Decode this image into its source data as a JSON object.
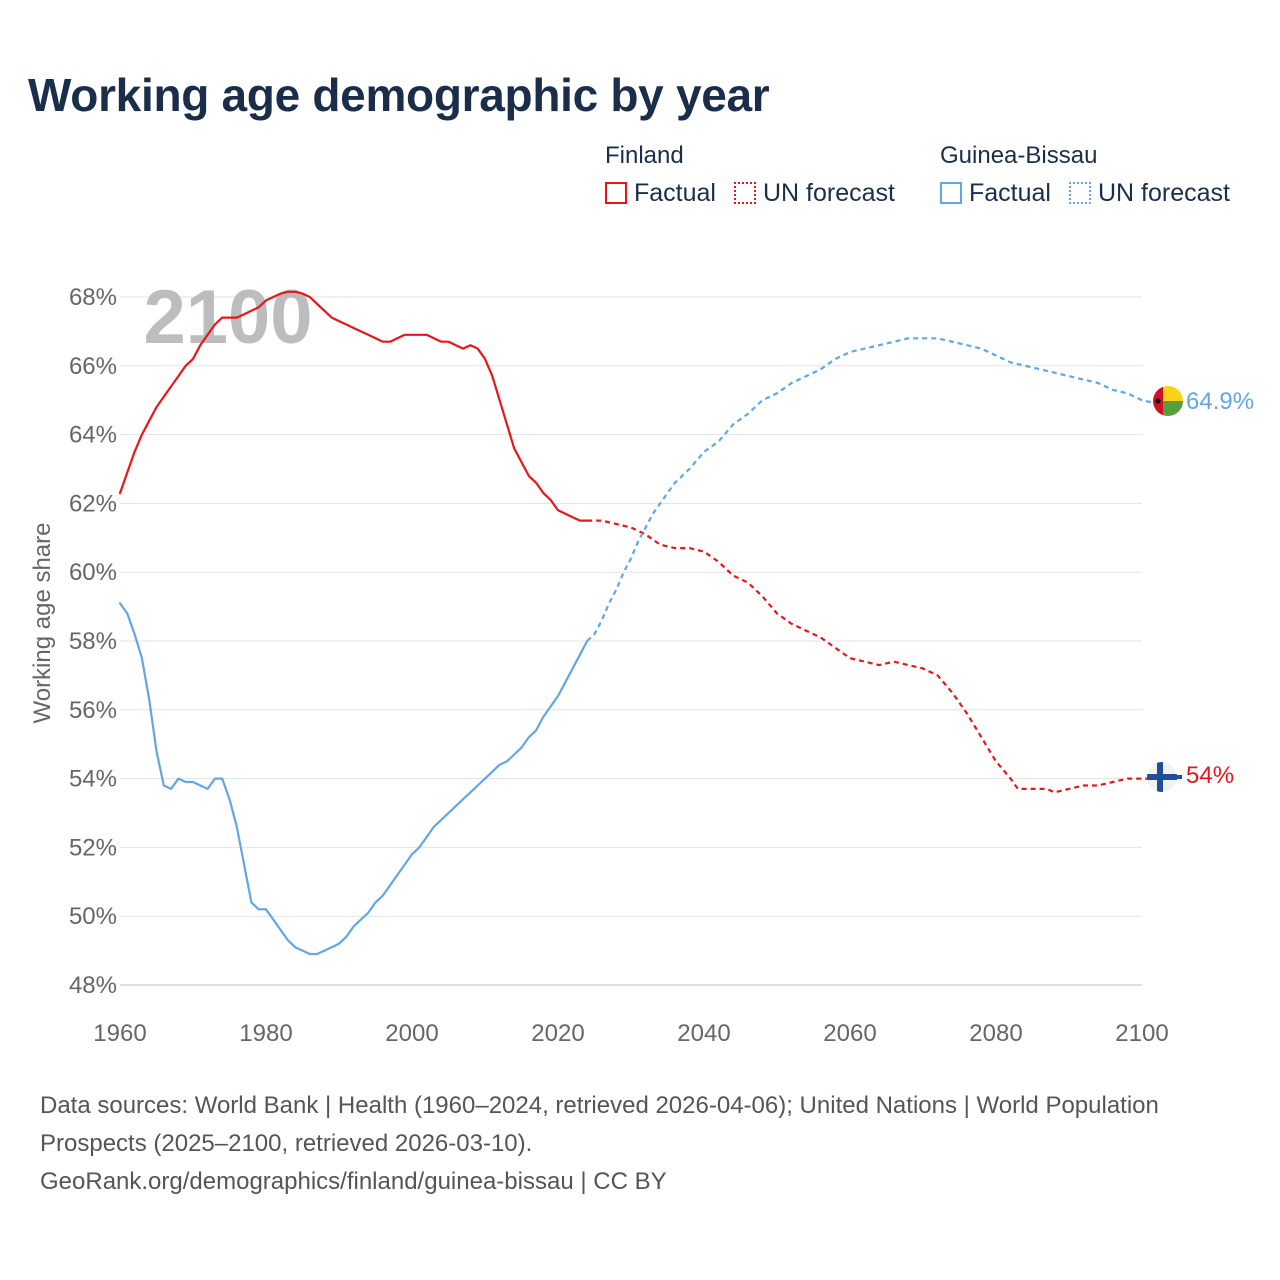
{
  "title": "Working age demographic by year",
  "legend": {
    "groups": [
      {
        "name": "Finland",
        "color": "#e8161b",
        "items": [
          {
            "label": "Factual",
            "style": "solid"
          },
          {
            "label": "UN forecast",
            "style": "dotted"
          }
        ]
      },
      {
        "name": "Guinea-Bissau",
        "color": "#62a6e3",
        "items": [
          {
            "label": "Factual",
            "style": "solid"
          },
          {
            "label": "UN forecast",
            "style": "dotted"
          }
        ]
      }
    ]
  },
  "year_watermark": "2100",
  "footer": {
    "sources": "Data sources: World Bank | Health (1960–2024, retrieved 2026-04-06); United Nations | World Population Prospects (2025–2100, retrieved 2026-03-10).",
    "credit": "GeoRank.org/demographics/finland/guinea-bissau | CC BY"
  },
  "chart_data": {
    "type": "line",
    "title": "Working age demographic by year",
    "xlabel": "",
    "ylabel": "Working age share",
    "xlim": [
      1960,
      2100
    ],
    "ylim": [
      48,
      68
    ],
    "x_ticks": [
      1960,
      1980,
      2000,
      2020,
      2040,
      2060,
      2080,
      2100
    ],
    "x_tick_labels": [
      "1960",
      "1980",
      "2000",
      "2020",
      "2040",
      "2060",
      "2080",
      "2100"
    ],
    "y_ticks": [
      48,
      50,
      52,
      54,
      56,
      58,
      60,
      62,
      64,
      66,
      68
    ],
    "y_tick_labels": [
      "48%",
      "50%",
      "52%",
      "54%",
      "56%",
      "58%",
      "60%",
      "62%",
      "64%",
      "66%",
      "68%"
    ],
    "grid": true,
    "forecast_start_year": 2024,
    "series": [
      {
        "name": "Finland",
        "color": "#e8161b",
        "end_label": "54%",
        "flag": "finland-flag",
        "points": [
          [
            1960,
            62.3
          ],
          [
            1961,
            62.9
          ],
          [
            1962,
            63.5
          ],
          [
            1963,
            64.0
          ],
          [
            1964,
            64.4
          ],
          [
            1965,
            64.8
          ],
          [
            1966,
            65.1
          ],
          [
            1967,
            65.4
          ],
          [
            1968,
            65.7
          ],
          [
            1969,
            66.0
          ],
          [
            1970,
            66.2
          ],
          [
            1971,
            66.6
          ],
          [
            1972,
            66.9
          ],
          [
            1973,
            67.2
          ],
          [
            1974,
            67.4
          ],
          [
            1975,
            67.4
          ],
          [
            1976,
            67.4
          ],
          [
            1977,
            67.5
          ],
          [
            1978,
            67.6
          ],
          [
            1979,
            67.7
          ],
          [
            1980,
            67.9
          ],
          [
            1981,
            68.0
          ],
          [
            1982,
            68.1
          ],
          [
            1983,
            68.15
          ],
          [
            1984,
            68.15
          ],
          [
            1985,
            68.1
          ],
          [
            1986,
            68.0
          ],
          [
            1987,
            67.8
          ],
          [
            1988,
            67.6
          ],
          [
            1989,
            67.4
          ],
          [
            1990,
            67.3
          ],
          [
            1991,
            67.2
          ],
          [
            1992,
            67.1
          ],
          [
            1993,
            67.0
          ],
          [
            1994,
            66.9
          ],
          [
            1995,
            66.8
          ],
          [
            1996,
            66.7
          ],
          [
            1997,
            66.7
          ],
          [
            1998,
            66.8
          ],
          [
            1999,
            66.9
          ],
          [
            2000,
            66.9
          ],
          [
            2001,
            66.9
          ],
          [
            2002,
            66.9
          ],
          [
            2003,
            66.8
          ],
          [
            2004,
            66.7
          ],
          [
            2005,
            66.7
          ],
          [
            2006,
            66.6
          ],
          [
            2007,
            66.5
          ],
          [
            2008,
            66.6
          ],
          [
            2009,
            66.5
          ],
          [
            2010,
            66.2
          ],
          [
            2011,
            65.7
          ],
          [
            2012,
            65.0
          ],
          [
            2013,
            64.3
          ],
          [
            2014,
            63.6
          ],
          [
            2015,
            63.2
          ],
          [
            2016,
            62.8
          ],
          [
            2017,
            62.6
          ],
          [
            2018,
            62.3
          ],
          [
            2019,
            62.1
          ],
          [
            2020,
            61.8
          ],
          [
            2021,
            61.7
          ],
          [
            2022,
            61.6
          ],
          [
            2023,
            61.5
          ],
          [
            2024,
            61.5
          ],
          [
            2026,
            61.5
          ],
          [
            2028,
            61.4
          ],
          [
            2030,
            61.3
          ],
          [
            2032,
            61.1
          ],
          [
            2034,
            60.8
          ],
          [
            2036,
            60.7
          ],
          [
            2038,
            60.7
          ],
          [
            2040,
            60.6
          ],
          [
            2042,
            60.3
          ],
          [
            2044,
            59.9
          ],
          [
            2046,
            59.7
          ],
          [
            2048,
            59.3
          ],
          [
            2050,
            58.8
          ],
          [
            2052,
            58.5
          ],
          [
            2054,
            58.3
          ],
          [
            2056,
            58.1
          ],
          [
            2058,
            57.8
          ],
          [
            2060,
            57.5
          ],
          [
            2062,
            57.4
          ],
          [
            2064,
            57.3
          ],
          [
            2066,
            57.4
          ],
          [
            2068,
            57.3
          ],
          [
            2070,
            57.2
          ],
          [
            2072,
            57.0
          ],
          [
            2074,
            56.5
          ],
          [
            2076,
            55.9
          ],
          [
            2078,
            55.2
          ],
          [
            2080,
            54.5
          ],
          [
            2082,
            54.0
          ],
          [
            2083,
            53.7
          ],
          [
            2085,
            53.7
          ],
          [
            2087,
            53.7
          ],
          [
            2088,
            53.6
          ],
          [
            2090,
            53.7
          ],
          [
            2092,
            53.8
          ],
          [
            2094,
            53.8
          ],
          [
            2096,
            53.9
          ],
          [
            2098,
            54.0
          ],
          [
            2100,
            54.0
          ],
          [
            2102,
            54.0
          ],
          [
            2104,
            54.0
          ],
          [
            2105,
            54.0
          ]
        ]
      },
      {
        "name": "Guinea-Bissau",
        "color": "#62a6e3",
        "end_label": "64.9%",
        "flag": "guinea-bissau-flag",
        "points": [
          [
            1960,
            59.1
          ],
          [
            1961,
            58.8
          ],
          [
            1962,
            58.2
          ],
          [
            1963,
            57.5
          ],
          [
            1964,
            56.3
          ],
          [
            1965,
            54.8
          ],
          [
            1966,
            53.8
          ],
          [
            1967,
            53.7
          ],
          [
            1968,
            54.0
          ],
          [
            1969,
            53.9
          ],
          [
            1970,
            53.9
          ],
          [
            1971,
            53.8
          ],
          [
            1972,
            53.7
          ],
          [
            1973,
            54.0
          ],
          [
            1974,
            54.0
          ],
          [
            1975,
            53.4
          ],
          [
            1976,
            52.6
          ],
          [
            1977,
            51.5
          ],
          [
            1978,
            50.4
          ],
          [
            1979,
            50.2
          ],
          [
            1980,
            50.2
          ],
          [
            1981,
            49.9
          ],
          [
            1982,
            49.6
          ],
          [
            1983,
            49.3
          ],
          [
            1984,
            49.1
          ],
          [
            1985,
            49.0
          ],
          [
            1986,
            48.9
          ],
          [
            1987,
            48.9
          ],
          [
            1988,
            49.0
          ],
          [
            1989,
            49.1
          ],
          [
            1990,
            49.2
          ],
          [
            1991,
            49.4
          ],
          [
            1992,
            49.7
          ],
          [
            1993,
            49.9
          ],
          [
            1994,
            50.1
          ],
          [
            1995,
            50.4
          ],
          [
            1996,
            50.6
          ],
          [
            1997,
            50.9
          ],
          [
            1998,
            51.2
          ],
          [
            1999,
            51.5
          ],
          [
            2000,
            51.8
          ],
          [
            2001,
            52.0
          ],
          [
            2002,
            52.3
          ],
          [
            2003,
            52.6
          ],
          [
            2004,
            52.8
          ],
          [
            2005,
            53.0
          ],
          [
            2006,
            53.2
          ],
          [
            2007,
            53.4
          ],
          [
            2008,
            53.6
          ],
          [
            2009,
            53.8
          ],
          [
            2010,
            54.0
          ],
          [
            2011,
            54.2
          ],
          [
            2012,
            54.4
          ],
          [
            2013,
            54.5
          ],
          [
            2014,
            54.7
          ],
          [
            2015,
            54.9
          ],
          [
            2016,
            55.2
          ],
          [
            2017,
            55.4
          ],
          [
            2018,
            55.8
          ],
          [
            2019,
            56.1
          ],
          [
            2020,
            56.4
          ],
          [
            2021,
            56.8
          ],
          [
            2022,
            57.2
          ],
          [
            2023,
            57.6
          ],
          [
            2024,
            58.0
          ],
          [
            2025,
            58.2
          ],
          [
            2026,
            58.6
          ],
          [
            2027,
            59.1
          ],
          [
            2028,
            59.5
          ],
          [
            2029,
            60.0
          ],
          [
            2030,
            60.4
          ],
          [
            2031,
            60.9
          ],
          [
            2032,
            61.3
          ],
          [
            2033,
            61.7
          ],
          [
            2034,
            62.0
          ],
          [
            2035,
            62.3
          ],
          [
            2036,
            62.6
          ],
          [
            2038,
            63.0
          ],
          [
            2040,
            63.5
          ],
          [
            2042,
            63.8
          ],
          [
            2044,
            64.3
          ],
          [
            2046,
            64.6
          ],
          [
            2048,
            65.0
          ],
          [
            2050,
            65.2
          ],
          [
            2052,
            65.5
          ],
          [
            2054,
            65.7
          ],
          [
            2056,
            65.9
          ],
          [
            2058,
            66.2
          ],
          [
            2060,
            66.4
          ],
          [
            2062,
            66.5
          ],
          [
            2064,
            66.6
          ],
          [
            2066,
            66.7
          ],
          [
            2068,
            66.8
          ],
          [
            2070,
            66.8
          ],
          [
            2072,
            66.8
          ],
          [
            2074,
            66.7
          ],
          [
            2076,
            66.6
          ],
          [
            2078,
            66.5
          ],
          [
            2080,
            66.3
          ],
          [
            2082,
            66.1
          ],
          [
            2084,
            66.0
          ],
          [
            2086,
            65.9
          ],
          [
            2088,
            65.8
          ],
          [
            2090,
            65.7
          ],
          [
            2092,
            65.6
          ],
          [
            2094,
            65.5
          ],
          [
            2096,
            65.3
          ],
          [
            2098,
            65.2
          ],
          [
            2100,
            65.0
          ],
          [
            2102,
            64.9
          ],
          [
            2103,
            64.9
          ]
        ]
      }
    ]
  }
}
